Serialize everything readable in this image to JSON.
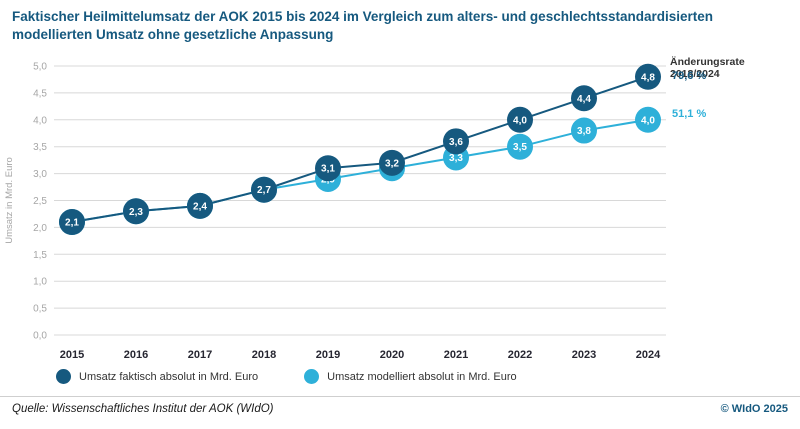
{
  "header": {
    "title": "Faktischer Heilmittelumsatz der AOK 2015 bis 2024 im Vergleich zum alters- und geschlechtsstandardisierten modellierten Umsatz ohne gesetzliche Anpassung"
  },
  "colors": {
    "primary_dark_blue": "#16597f",
    "secondary_light_blue": "#2eb0d9",
    "gridline": "#d8d8d8",
    "axis_text": "#a6a6a6"
  },
  "chart_data": {
    "type": "line",
    "title": "Faktischer Heilmittelumsatz der AOK 2015 bis 2024 im Vergleich zum alters- und geschlechtsstandardisierten modellierten Umsatz ohne gesetzliche Anpassung",
    "x": [
      2015,
      2016,
      2017,
      2018,
      2019,
      2020,
      2021,
      2022,
      2023,
      2024
    ],
    "xlabel": "",
    "ylabel": "Umsatz in Mrd. Euro",
    "ylim": [
      0,
      5
    ],
    "ytick_step": 0.5,
    "grid": true,
    "legend_position": "bottom",
    "series": [
      {
        "name": "Umsatz faktisch absolut in Mrd. Euro",
        "color": "#16597f",
        "values": [
          2.1,
          2.3,
          2.4,
          2.7,
          3.1,
          3.2,
          3.6,
          4.0,
          4.4,
          4.8
        ]
      },
      {
        "name": "Umsatz modelliert absolut in Mrd. Euro",
        "color": "#2eb0d9",
        "values": [
          2.1,
          2.3,
          2.4,
          2.7,
          2.9,
          3.1,
          3.3,
          3.5,
          3.8,
          4.0
        ]
      }
    ],
    "annotation": {
      "title": "Änderungsrate 2018/2024",
      "values": [
        {
          "text": "79,6 %",
          "color": "#16597f"
        },
        {
          "text": "51,1 %",
          "color": "#2eb0d9"
        }
      ]
    }
  },
  "legend": {
    "items": [
      {
        "label": "Umsatz faktisch absolut in Mrd. Euro"
      },
      {
        "label": "Umsatz modelliert absolut in Mrd. Euro"
      }
    ]
  },
  "footer": {
    "source": "Quelle: Wissenschaftliches Institut der AOK (WIdO)",
    "copyright": "© WIdO 2025"
  }
}
